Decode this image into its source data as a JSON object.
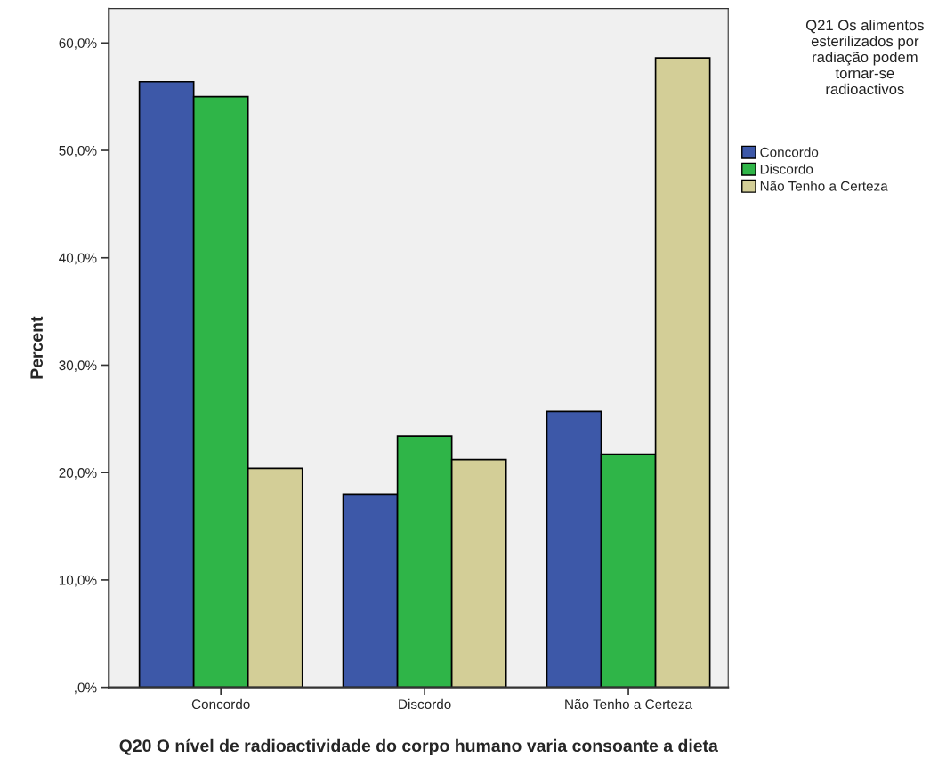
{
  "chart_data": {
    "type": "bar",
    "categories": [
      "Concordo",
      "Discordo",
      "Não Tenho a Certeza"
    ],
    "series": [
      {
        "name": "Concordo",
        "color": "#3d58a8",
        "values": [
          56.4,
          18.0,
          25.7
        ]
      },
      {
        "name": "Discordo",
        "color": "#2fb548",
        "values": [
          55.0,
          23.4,
          21.7
        ]
      },
      {
        "name": "Não Tenho a Certeza",
        "color": "#d3ce97",
        "values": [
          20.4,
          21.2,
          58.6
        ]
      }
    ],
    "xlabel": "Q20 O nível de radioactividade do corpo humano varia consoante a dieta",
    "ylabel": "Percent",
    "legend_title": "Q21 Os alimentos esterilizados por radiação podem tornar-se radioactivos",
    "legend": "right",
    "grid": false,
    "ylim": [
      0,
      63.2
    ],
    "yticks": [
      {
        "value": 0,
        "label": ",0%"
      },
      {
        "value": 10,
        "label": "10,0%"
      },
      {
        "value": 20,
        "label": "20,0%"
      },
      {
        "value": 30,
        "label": "30,0%"
      },
      {
        "value": 40,
        "label": "40,0%"
      },
      {
        "value": 50,
        "label": "50,0%"
      },
      {
        "value": 60,
        "label": "60,0%"
      }
    ]
  }
}
